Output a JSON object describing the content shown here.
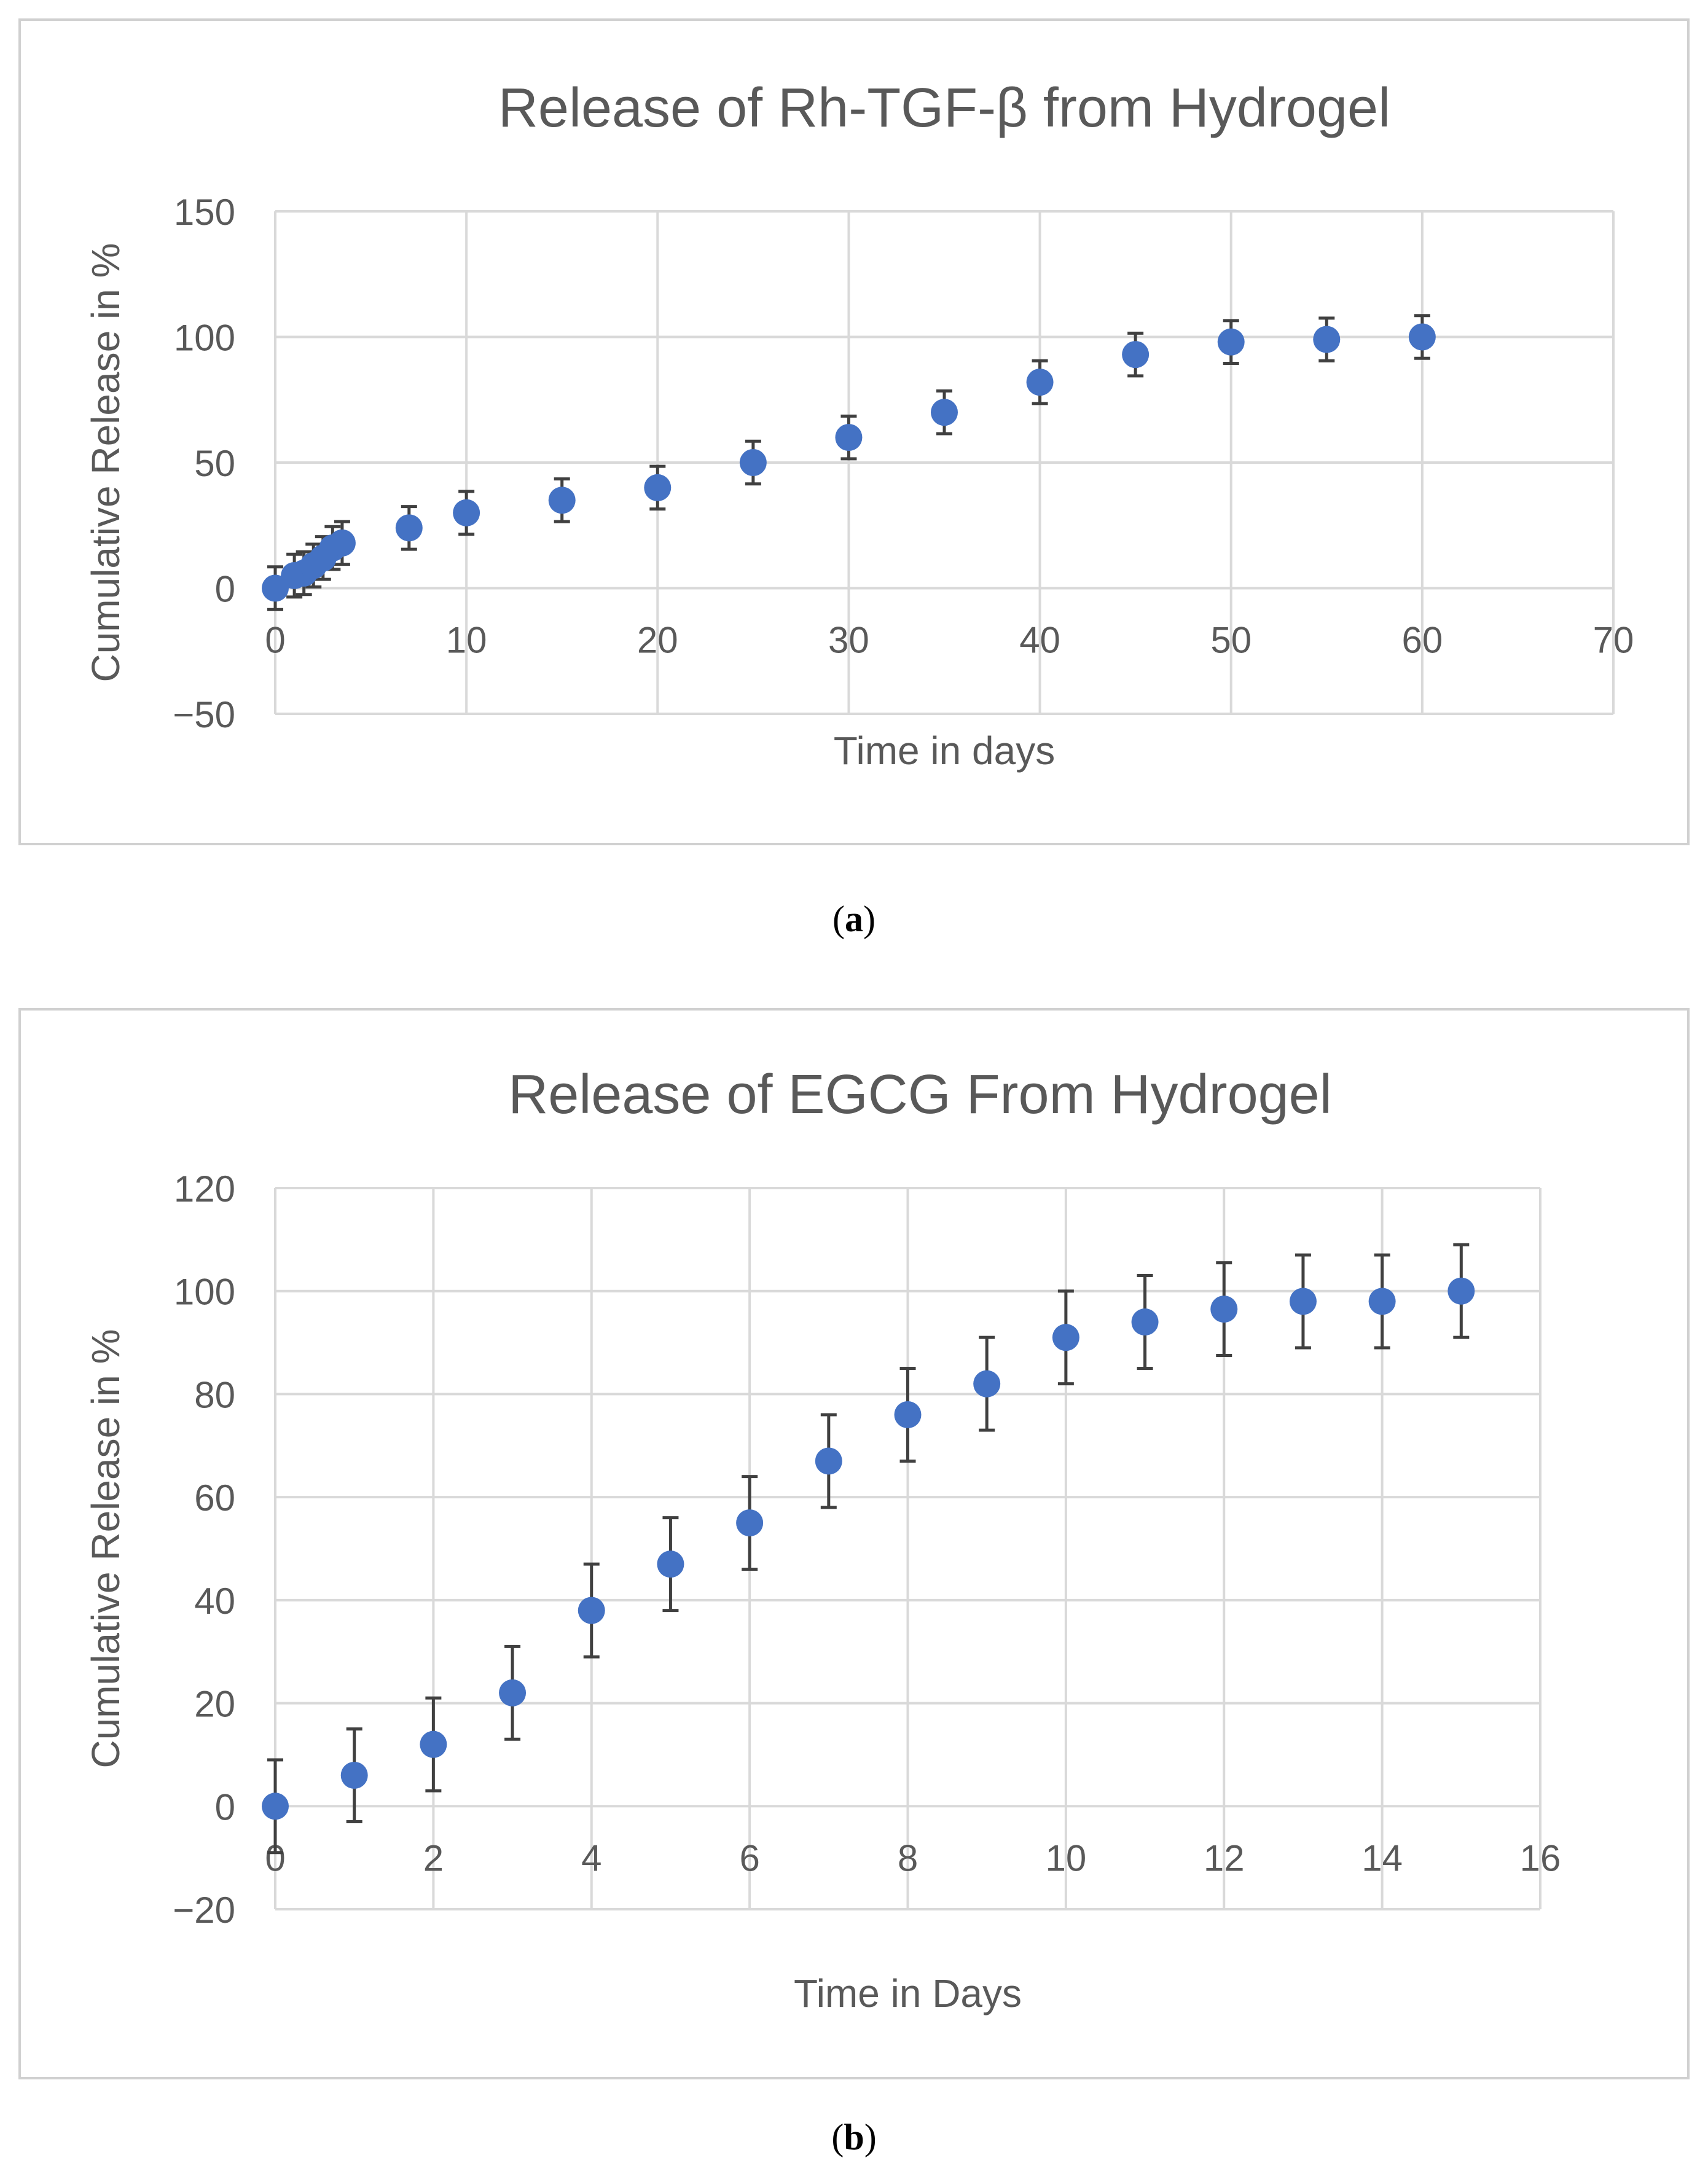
{
  "chart_data": [
    {
      "type": "scatter",
      "title": "Release of Rh-TGF-β from Hydrogel",
      "xlabel": "Time in days",
      "ylabel": "Cumulative Release in %",
      "xlim": [
        0,
        70
      ],
      "ylim": [
        -50,
        150
      ],
      "xticks": [
        0,
        10,
        20,
        30,
        40,
        50,
        60,
        70
      ],
      "yticks": [
        -50,
        0,
        50,
        100,
        150
      ],
      "xtick_labels": [
        "0",
        "10",
        "20",
        "30",
        "40",
        "50",
        "60",
        "70"
      ],
      "ytick_labels": [
        "−50",
        "0",
        "50",
        "100",
        "150"
      ],
      "grid": true,
      "series": [
        {
          "name": "Rh-TGF-β",
          "color": "#4472c4",
          "x": [
            0,
            1,
            1.5,
            2,
            2.5,
            3,
            3.5,
            7,
            10,
            15,
            20,
            25,
            30,
            35,
            40,
            45,
            50,
            55,
            60
          ],
          "y": [
            0,
            5,
            6,
            9,
            12,
            16,
            18,
            24,
            30,
            35,
            40,
            50,
            60,
            70,
            82,
            93,
            98,
            99,
            100
          ],
          "error": 8.5
        }
      ],
      "caption_letter": "a"
    },
    {
      "type": "scatter",
      "title": "Release of EGCG From Hydrogel",
      "xlabel": "Time in Days",
      "ylabel": "Cumulative Release in %",
      "xlim": [
        0,
        16
      ],
      "ylim": [
        -20,
        120
      ],
      "xticks": [
        0,
        2,
        4,
        6,
        8,
        10,
        12,
        14,
        16
      ],
      "yticks": [
        -20,
        0,
        20,
        40,
        60,
        80,
        100,
        120
      ],
      "xtick_labels": [
        "0",
        "2",
        "4",
        "6",
        "8",
        "10",
        "12",
        "14",
        "16"
      ],
      "ytick_labels": [
        "−20",
        "0",
        "20",
        "40",
        "60",
        "80",
        "100",
        "120"
      ],
      "grid": true,
      "series": [
        {
          "name": "EGCG",
          "color": "#4472c4",
          "x": [
            0,
            1,
            2,
            3,
            4,
            5,
            6,
            7,
            8,
            9,
            10,
            11,
            12,
            13,
            14,
            15
          ],
          "y": [
            0,
            6,
            12,
            22,
            38,
            47,
            55,
            67,
            76,
            82,
            91,
            94,
            96.5,
            98,
            98,
            100
          ],
          "error": 9
        }
      ],
      "caption_letter": "b"
    }
  ]
}
